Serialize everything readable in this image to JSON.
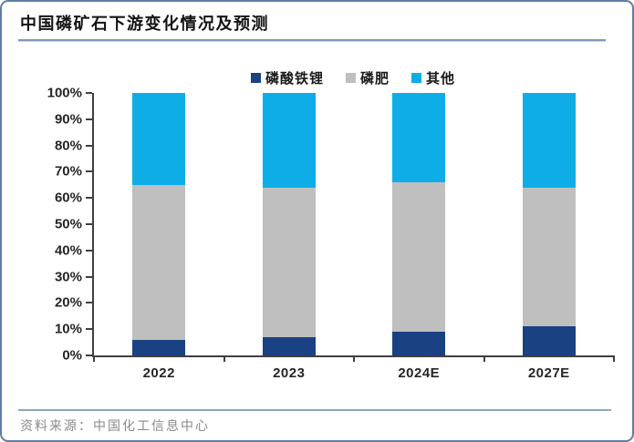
{
  "report": {
    "title": "中国磷矿石下游变化情况及预测",
    "source": "资料来源：中国化工信息中心"
  },
  "colors": {
    "frame_border": "#5f7ea4",
    "title_rule": "#7e98b8",
    "bottom_rule": "#8da6c0",
    "axis": "#3f3f3f",
    "tick_label": "#262626",
    "series_lfp": "#1a4181",
    "series_fertilizer": "#bfbfbf",
    "series_other": "#0fade7"
  },
  "chart_data": {
    "type": "bar",
    "stacked": true,
    "percent_stacked": true,
    "title": "中国磷矿石下游变化情况及预测",
    "categories": [
      "2022",
      "2023",
      "2024E",
      "2027E"
    ],
    "series": [
      {
        "key": "lfp",
        "name": "磷酸铁锂",
        "color": "#1a4181",
        "values": [
          6,
          7,
          9,
          11
        ]
      },
      {
        "key": "fertilizer",
        "name": "磷肥",
        "color": "#bfbfbf",
        "values": [
          59,
          57,
          57,
          53
        ]
      },
      {
        "key": "other",
        "name": "其他",
        "color": "#0fade7",
        "values": [
          35,
          36,
          34,
          36
        ]
      }
    ],
    "xlabel": "",
    "ylabel": "",
    "ylim": [
      0,
      100
    ],
    "ytick_step": 10,
    "ytick_labels": [
      "0%",
      "10%",
      "20%",
      "30%",
      "40%",
      "50%",
      "60%",
      "70%",
      "80%",
      "90%",
      "100%"
    ],
    "legend_position": "top-center",
    "grid": false,
    "source": "资料来源：中国化工信息中心"
  }
}
